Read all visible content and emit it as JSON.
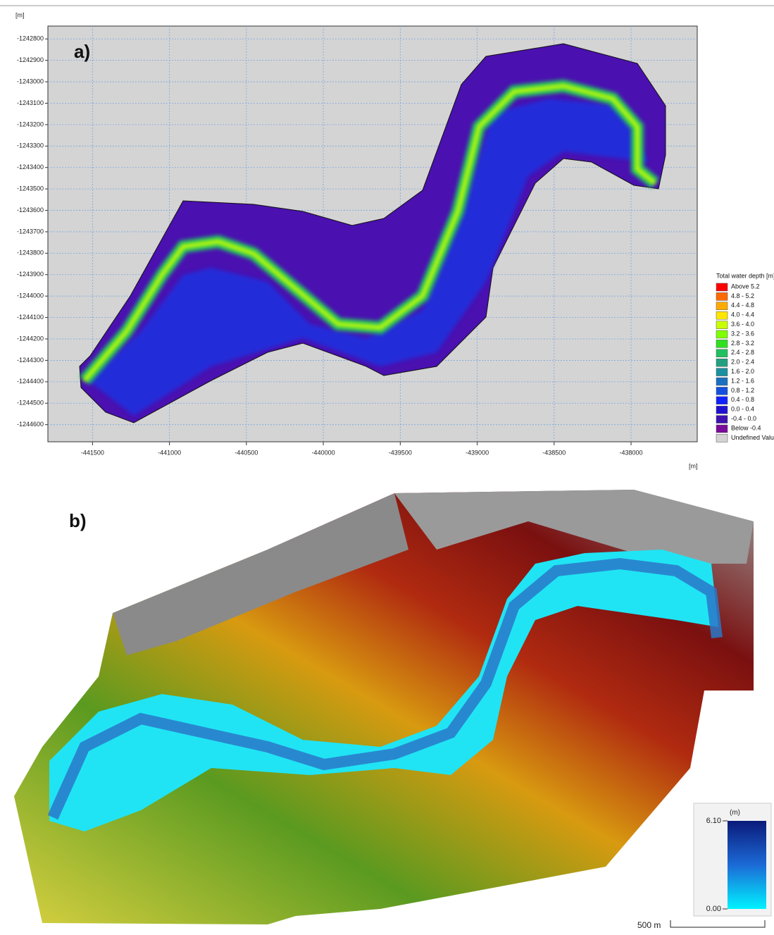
{
  "panel_a": {
    "label": "a)",
    "y_unit": "[m]",
    "x_unit": "[m]",
    "xlim": [
      -441790,
      -437570
    ],
    "ylim": [
      -1244680,
      -1242740
    ],
    "xticks": [
      -441500,
      -441000,
      -440500,
      -440000,
      -439500,
      -439000,
      -438500,
      -438000
    ],
    "yticks": [
      -1242800,
      -1242900,
      -1243000,
      -1243100,
      -1243200,
      -1243300,
      -1243400,
      -1243500,
      -1243600,
      -1243700,
      -1243800,
      -1243900,
      -1244000,
      -1244100,
      -1244200,
      -1244300,
      -1244400,
      -1244500,
      -1244600
    ],
    "grid": true,
    "legend": {
      "title": "Total water depth [m]",
      "items": [
        {
          "label": "Above  5.2",
          "color": "#ff0000"
        },
        {
          "label": "4.8 - 5.2",
          "color": "#ff6a00"
        },
        {
          "label": "4.4 - 4.8",
          "color": "#ffaa00"
        },
        {
          "label": "4.0 - 4.4",
          "color": "#ffe600"
        },
        {
          "label": "3.6 - 4.0",
          "color": "#c8ff00"
        },
        {
          "label": "3.2 - 3.6",
          "color": "#7fff00"
        },
        {
          "label": "2.8 - 3.2",
          "color": "#30e020"
        },
        {
          "label": "2.4 - 2.8",
          "color": "#20c060"
        },
        {
          "label": "2.0 - 2.4",
          "color": "#20a080"
        },
        {
          "label": "1.6 - 2.0",
          "color": "#1a90a0"
        },
        {
          "label": "1.2 - 1.6",
          "color": "#1a70c0"
        },
        {
          "label": "0.8 - 1.2",
          "color": "#1450e0"
        },
        {
          "label": "0.4 - 0.8",
          "color": "#1020ff"
        },
        {
          "label": "0.0 - 0.4",
          "color": "#2010d0"
        },
        {
          "label": "-0.4 - 0.0",
          "color": "#4010b0"
        },
        {
          "label": "Below -0.4",
          "color": "#7a0a9a"
        },
        {
          "label": "Undefined Value",
          "color": "#d3d3d3"
        }
      ]
    }
  },
  "panel_b": {
    "label": "b)",
    "colorbar": {
      "unit": "(m)",
      "ticks": [
        {
          "value": 6.1,
          "label": "6.10"
        },
        {
          "value": 0,
          "label": "0.00"
        }
      ]
    },
    "scale_bar": "500 m"
  }
}
